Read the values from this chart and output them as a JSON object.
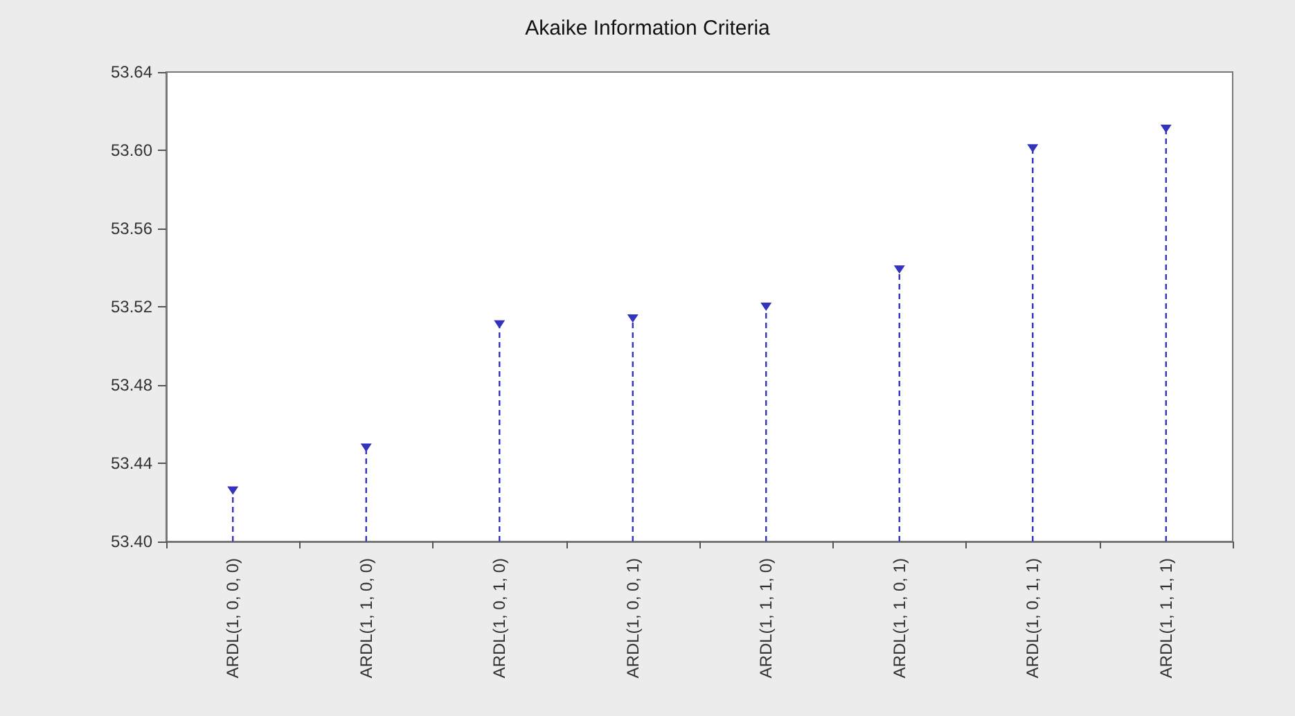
{
  "chart_data": {
    "type": "lollipop",
    "title": "Akaike Information Criteria",
    "categories": [
      "ARDL(1, 0, 0, 0)",
      "ARDL(1, 1, 0, 0)",
      "ARDL(1, 0, 1, 0)",
      "ARDL(1, 0, 0, 1)",
      "ARDL(1, 1, 1, 0)",
      "ARDL(1, 1, 0, 1)",
      "ARDL(1, 0, 1, 1)",
      "ARDL(1, 1, 1, 1)"
    ],
    "values": [
      53.426,
      53.448,
      53.511,
      53.514,
      53.52,
      53.539,
      53.601,
      53.611
    ],
    "color": "#3333bb",
    "ylim": [
      53.4,
      53.64
    ],
    "yticks": [
      {
        "value": 53.4,
        "label": "53.40"
      },
      {
        "value": 53.44,
        "label": "53.44"
      },
      {
        "value": 53.48,
        "label": "53.48"
      },
      {
        "value": 53.52,
        "label": "53.52"
      },
      {
        "value": 53.56,
        "label": "53.56"
      },
      {
        "value": 53.6,
        "label": "53.60"
      },
      {
        "value": 53.64,
        "label": "53.64"
      }
    ],
    "marker": "triangle",
    "line_style": "dashed"
  }
}
